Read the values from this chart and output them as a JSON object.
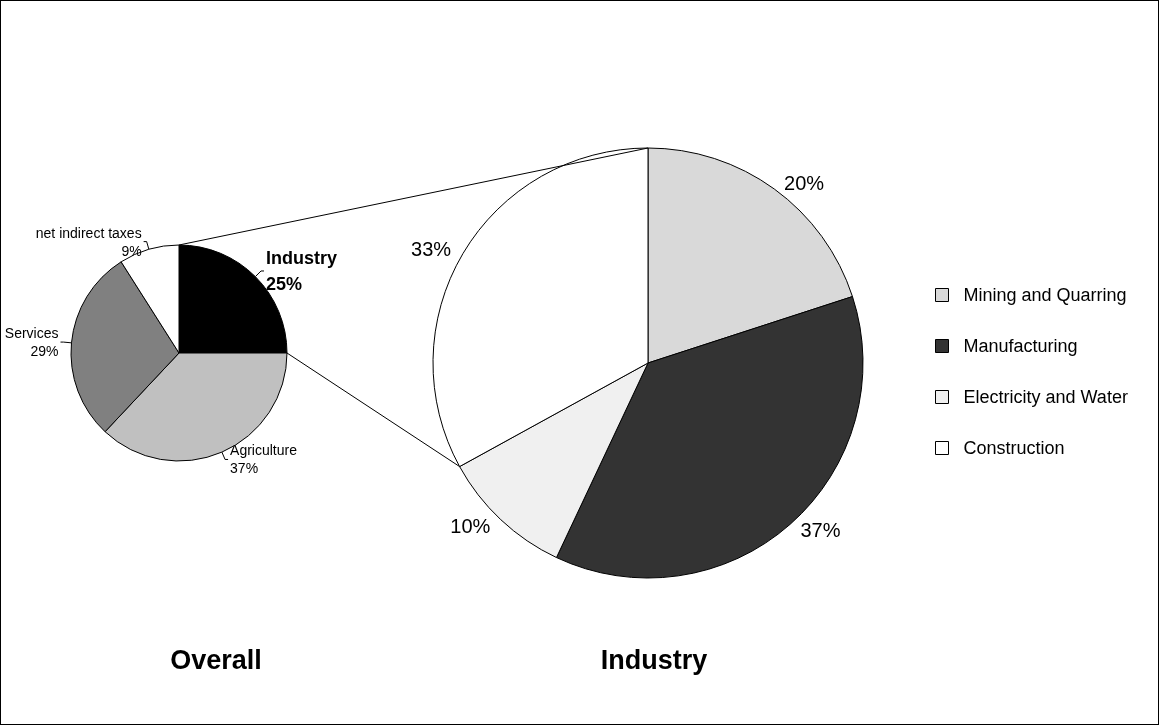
{
  "chart_data": [
    {
      "type": "pie",
      "title": "Overall",
      "categories": [
        "Industry",
        "Agriculture",
        "Services",
        "net indirect taxes"
      ],
      "values": [
        25,
        37,
        29,
        9
      ],
      "value_labels": [
        "25%",
        "37%",
        "29%",
        "9%"
      ],
      "colors": [
        "#000000",
        "#c0c0c0",
        "#808080",
        "#ffffff"
      ]
    },
    {
      "type": "pie",
      "title": "Industry",
      "categories": [
        "Mining and Quarring",
        "Manufacturing",
        "Electricity and Water",
        "Construction"
      ],
      "values": [
        20,
        37,
        10,
        33
      ],
      "value_labels": [
        "20%",
        "37%",
        "10%",
        "33%"
      ],
      "colors": [
        "#d9d9d9",
        "#333333",
        "#f0f0f0",
        "#ffffff"
      ],
      "legend": "right"
    }
  ]
}
